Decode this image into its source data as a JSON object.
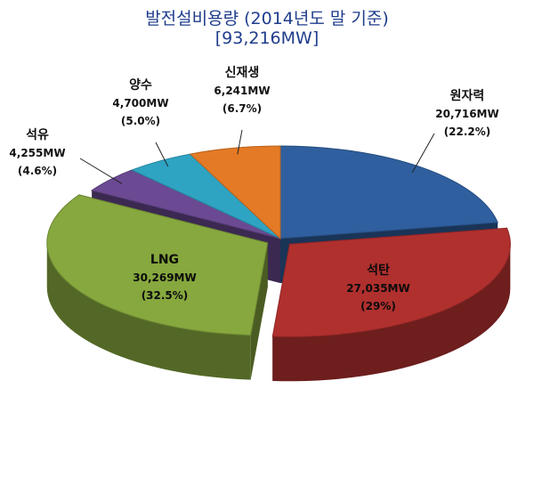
{
  "title_line1": "발전설비용량 (2014년도 말 기준)",
  "title_line2": "[93,216MW]",
  "chart_data": {
    "type": "pie",
    "title": "발전설비용량 (2014년도 말 기준)",
    "subtitle": "[93,216MW]",
    "unit": "MW",
    "slices": [
      {
        "name": "원자력",
        "value": 20716,
        "value_label": "20,716MW",
        "percent": 22.2,
        "percent_label": "(22.2%)",
        "color": "#2f5f9e"
      },
      {
        "name": "석탄",
        "value": 27035,
        "value_label": "27,035MW",
        "percent": 29,
        "percent_label": "(29%)",
        "color": "#b0302e"
      },
      {
        "name": "LNG",
        "value": 30269,
        "value_label": "30,269MW",
        "percent": 32.5,
        "percent_label": "(32.5%)",
        "color": "#86a83e"
      },
      {
        "name": "석유",
        "value": 4255,
        "value_label": "4,255MW",
        "percent": 4.6,
        "percent_label": "(4.6%)",
        "color": "#6b4a93"
      },
      {
        "name": "양수",
        "value": 4700,
        "value_label": "4,700MW",
        "percent": 5.0,
        "percent_label": "(5.0%)",
        "color": "#2fa3c2"
      },
      {
        "name": "신재생",
        "value": 6241,
        "value_label": "6,241MW",
        "percent": 6.7,
        "percent_label": "(6.7%)",
        "color": "#e47a25"
      }
    ],
    "exploded": [
      "석탄",
      "LNG"
    ]
  }
}
